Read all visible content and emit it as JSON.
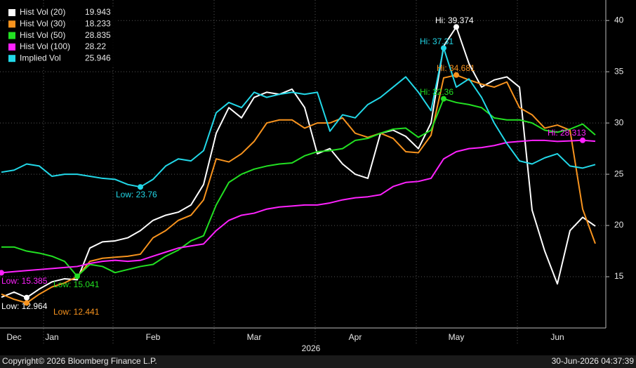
{
  "chart_data": {
    "type": "line",
    "xlabel": "2026",
    "categories": [
      null,
      "Dec",
      null,
      null,
      "Jan",
      null,
      null,
      null,
      null,
      null,
      null,
      null,
      "Feb",
      null,
      null,
      null,
      null,
      null,
      null,
      null,
      "Mar",
      null,
      null,
      null,
      null,
      null,
      null,
      null,
      "Apr",
      null,
      null,
      null,
      null,
      null,
      null,
      null,
      "May",
      null,
      null,
      null,
      null,
      null,
      null,
      null,
      "Jun",
      null,
      null,
      null
    ],
    "ylim": [
      10,
      42
    ],
    "yticks": [
      15,
      20,
      25,
      30,
      35,
      40
    ],
    "grid": true,
    "series": [
      {
        "name": "Hist Vol (20)",
        "legend_value": 19.943,
        "color": "#ffffff",
        "values": [
          13.0,
          13.5,
          12.964,
          13.8,
          14.5,
          14.8,
          14.7,
          17.8,
          18.4,
          18.5,
          18.8,
          19.5,
          20.5,
          21,
          21.3,
          22,
          24,
          29,
          31.5,
          30.5,
          32.5,
          33,
          32.8,
          33.3,
          31.5,
          27,
          27.5,
          26,
          25,
          24.6,
          29,
          29.3,
          28.7,
          27.5,
          30,
          37.5,
          39.374,
          35.8,
          33.5,
          34.2,
          34.5,
          33.5,
          21.5,
          17.5,
          14.3,
          19.5,
          20.8,
          19.943
        ]
      },
      {
        "name": "Hist Vol (30)",
        "legend_value": 18.233,
        "color": "#f7931e",
        "values": [
          13.3,
          12.8,
          12.441,
          13.3,
          14,
          14.4,
          15,
          16.5,
          16.8,
          16.9,
          17,
          17.2,
          18.8,
          19.5,
          20.5,
          21,
          22.5,
          26.5,
          26.2,
          27,
          28.2,
          30,
          30.3,
          30.3,
          29.5,
          30,
          30,
          30.5,
          29,
          28.6,
          29,
          28.5,
          27.2,
          27.1,
          28.8,
          34.4,
          34.681,
          34.2,
          33.8,
          33.5,
          34,
          31.5,
          30.8,
          29.5,
          29.8,
          29.3,
          21.6,
          18.233
        ]
      },
      {
        "name": "Hist Vol (50)",
        "legend_value": 28.835,
        "color": "#22e022",
        "values": [
          17.9,
          17.9,
          17.5,
          17.3,
          17.0,
          16.5,
          15.041,
          16.2,
          16,
          15.4,
          15.7,
          16,
          16.2,
          17,
          17.6,
          18.5,
          19,
          22,
          24.2,
          25,
          25.5,
          25.8,
          26,
          26.1,
          26.8,
          27.2,
          27.3,
          27.5,
          28.3,
          28.5,
          29,
          29.4,
          29.5,
          28.6,
          29.3,
          32.36,
          32,
          31.8,
          31.5,
          30.5,
          30.3,
          30.3,
          30,
          29.3,
          29.1,
          29.4,
          29.9,
          28.835
        ]
      },
      {
        "name": "Hist Vol (100)",
        "legend_value": 28.22,
        "color": "#ff22ff",
        "values": [
          15.385,
          15.5,
          15.6,
          15.7,
          15.8,
          15.9,
          16,
          16.3,
          16.5,
          16.6,
          16.5,
          16.6,
          17,
          17.4,
          17.8,
          18,
          18.2,
          19.5,
          20.5,
          21,
          21.2,
          21.6,
          21.8,
          21.9,
          22,
          22,
          22.2,
          22.5,
          22.7,
          22.8,
          23,
          23.8,
          24.2,
          24.3,
          24.6,
          26.5,
          27.2,
          27.5,
          27.6,
          27.8,
          28.1,
          28.2,
          28.3,
          28.3,
          28.2,
          28.25,
          28.313,
          28.22
        ]
      },
      {
        "name": "Implied Vol",
        "legend_value": 25.946,
        "color": "#22d8e8",
        "values": [
          25.2,
          25.4,
          26,
          25.8,
          24.8,
          25,
          25,
          24.8,
          24.6,
          24.5,
          24,
          23.76,
          24.5,
          25.8,
          26.5,
          26.3,
          27.3,
          31,
          32,
          31.5,
          33,
          32.5,
          32.8,
          33,
          32.8,
          33,
          29.2,
          30.8,
          30.5,
          31.8,
          32.5,
          33.5,
          34.5,
          33,
          31.2,
          37.31,
          33.5,
          34.3,
          32.5,
          30,
          28,
          26.3,
          26,
          26.6,
          27,
          25.8,
          25.6,
          25.946
        ]
      }
    ],
    "annotations": [
      "Hi: 39.374",
      "Hi: 37.31",
      "Hi: 34.681",
      "Hi: 32.36",
      "Hi: 28.313",
      "Low: 23.76",
      "Low: 15.385",
      "Low: 15.041",
      "Low: 12.964",
      "Low: 12.441"
    ],
    "footer_left": "Copyright© 2026 Bloomberg Finance L.P.",
    "footer_right": "30-Jun-2026 04:37:39"
  }
}
